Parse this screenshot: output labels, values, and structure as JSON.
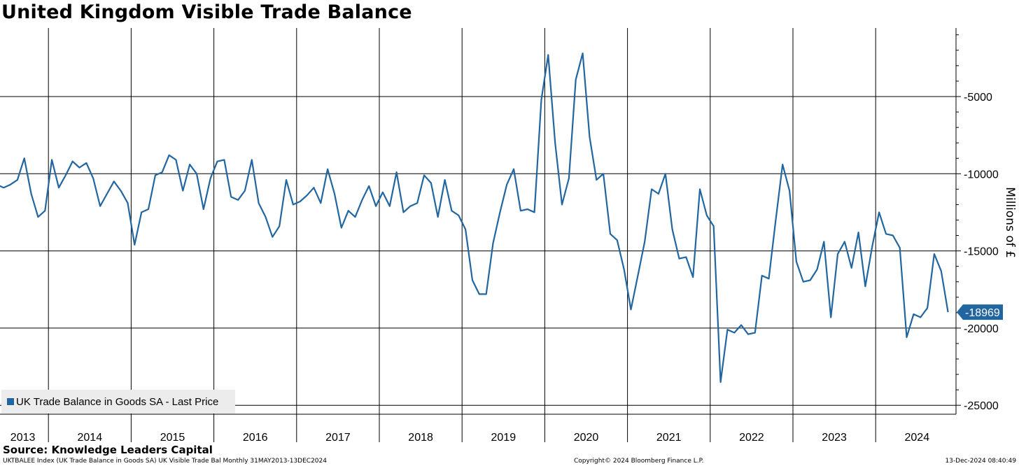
{
  "title": "United Kingdom Visible Trade Balance",
  "source": "Source: Knowledge Leaders Capital",
  "footer": {
    "left": "UKTBALEE Index (UK Trade Balance in Goods SA) UK Visible Trade Bal  Monthly 31MAY2013-13DEC2024",
    "center": "Copyright© 2024 Bloomberg Finance L.P.",
    "right": "13-Dec-2024 08:40:49"
  },
  "colors": {
    "series": "#2266a1",
    "grid": "#000000",
    "legend_bg": "#ececec"
  },
  "chart_data": {
    "type": "line",
    "ylabel": "Millions of £",
    "ylim": [
      -25500,
      -500
    ],
    "y_ticks": [
      -5000,
      -10000,
      -15000,
      -20000,
      -25000
    ],
    "y_tick_labels": [
      "-5000",
      "-10000",
      "-15000",
      "-20000",
      "-25000"
    ],
    "x_year_labels": [
      "2013",
      "2014",
      "2015",
      "2016",
      "2017",
      "2018",
      "2019",
      "2020",
      "2021",
      "2022",
      "2023",
      "2024"
    ],
    "grid": true,
    "legend_position": "bottom-left",
    "last_value": -18969,
    "last_value_label": "-18969",
    "series": [
      {
        "name": "UK Trade Balance in Goods SA - Last Price",
        "start": "2013-05",
        "frequency": "monthly",
        "values": [
          -10700,
          -10900,
          -10700,
          -10400,
          -9000,
          -11300,
          -12800,
          -12400,
          -9100,
          -10900,
          -10100,
          -9200,
          -9600,
          -9300,
          -10300,
          -12100,
          -11300,
          -10500,
          -11100,
          -11900,
          -14600,
          -12500,
          -12300,
          -10100,
          -9900,
          -8800,
          -9100,
          -11100,
          -9400,
          -10000,
          -12300,
          -10300,
          -9200,
          -9100,
          -11500,
          -11700,
          -11100,
          -9100,
          -11900,
          -12800,
          -14100,
          -13400,
          -10400,
          -12000,
          -11800,
          -11400,
          -10900,
          -11900,
          -9700,
          -11300,
          -13500,
          -12400,
          -12800,
          -11700,
          -10800,
          -12100,
          -11200,
          -12100,
          -9900,
          -12500,
          -12100,
          -11900,
          -10100,
          -10600,
          -12800,
          -10400,
          -12400,
          -12700,
          -13600,
          -16900,
          -17800,
          -17800,
          -14500,
          -12500,
          -10700,
          -9700,
          -12400,
          -12300,
          -12500,
          -5200,
          -2300,
          -8000,
          -12000,
          -10300,
          -3900,
          -2200,
          -7600,
          -10400,
          -10000,
          -13900,
          -14300,
          -16200,
          -18800,
          -16600,
          -14400,
          -11000,
          -11300,
          -10000,
          -13600,
          -15500,
          -15400,
          -16700,
          -11000,
          -12700,
          -13400,
          -23500,
          -20100,
          -20300,
          -19800,
          -20400,
          -20300,
          -16600,
          -16800,
          -13000,
          -9400,
          -11100,
          -15700,
          -17000,
          -16900,
          -16200,
          -14400,
          -19300,
          -15200,
          -14400,
          -16100,
          -13800,
          -17300,
          -14700,
          -12500,
          -13900,
          -14000,
          -14800,
          -20600,
          -19100,
          -19300,
          -18700,
          -15200,
          -16300,
          -18969
        ]
      }
    ]
  }
}
